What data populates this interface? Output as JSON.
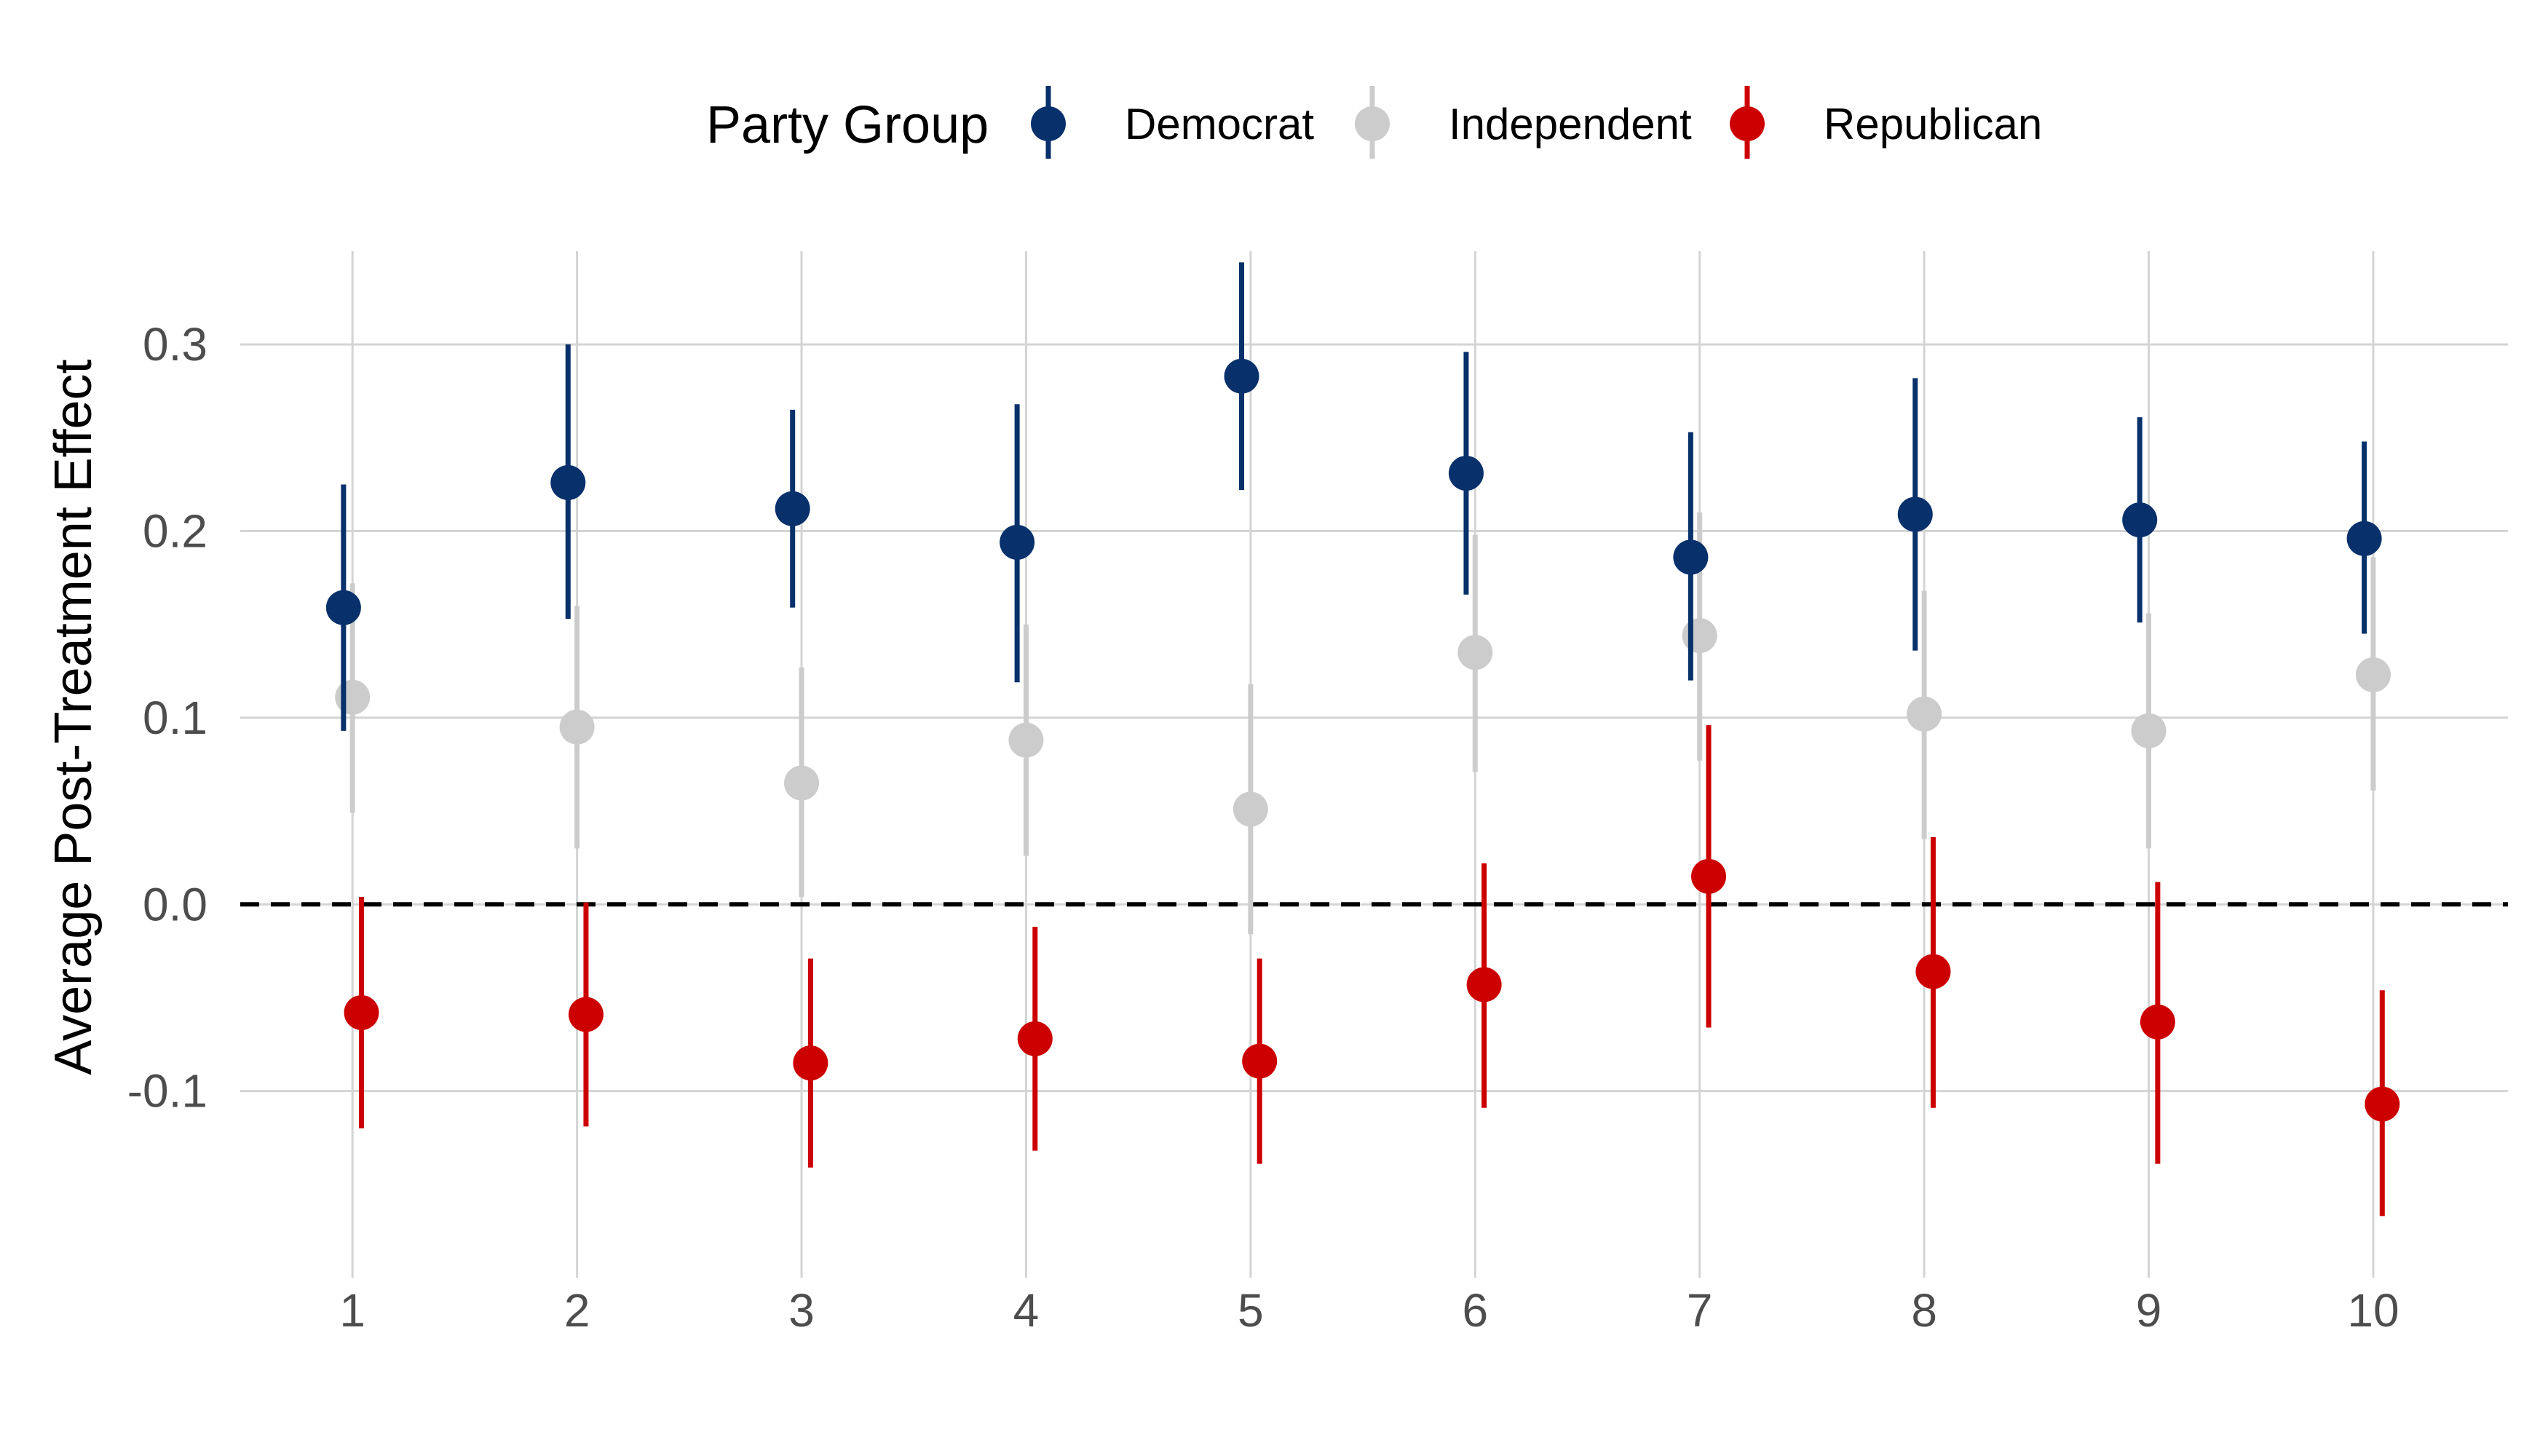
{
  "chart_data": {
    "type": "scatter",
    "title": "",
    "xlabel": "",
    "ylabel": "Average Post-Treatment Effect",
    "legend_title": "Party Group",
    "legend_position": "top",
    "grid": true,
    "x": [
      1,
      2,
      3,
      4,
      5,
      6,
      7,
      8,
      9,
      10
    ],
    "x_tick_labels": [
      "1",
      "2",
      "3",
      "4",
      "5",
      "6",
      "7",
      "8",
      "9",
      "10"
    ],
    "y_ticks": [
      -0.1,
      0.0,
      0.1,
      0.2,
      0.3
    ],
    "y_tick_labels": [
      "-0.1",
      "0.0",
      "0.1",
      "0.2",
      "0.3"
    ],
    "ylim": [
      -0.2,
      0.35
    ],
    "xlim": [
      0.5,
      10.6
    ],
    "reference_line": {
      "y": 0,
      "style": "dashed",
      "color": "#000000"
    },
    "series": [
      {
        "name": "Democrat",
        "color": "#08306b",
        "offset": -0.04,
        "values": [
          0.159,
          0.226,
          0.212,
          0.194,
          0.283,
          0.231,
          0.186,
          0.209,
          0.206,
          0.196
        ],
        "lower": [
          0.093,
          0.153,
          0.159,
          0.119,
          0.222,
          0.166,
          0.12,
          0.136,
          0.151,
          0.145
        ],
        "upper": [
          0.225,
          0.3,
          0.265,
          0.268,
          0.344,
          0.296,
          0.253,
          0.282,
          0.261,
          0.248
        ]
      },
      {
        "name": "Independent",
        "color": "#cccccc",
        "offset": 0.0,
        "values": [
          0.111,
          0.095,
          0.065,
          0.088,
          0.051,
          0.135,
          0.144,
          0.102,
          0.093,
          0.123
        ],
        "lower": [
          0.049,
          0.03,
          0.004,
          0.026,
          -0.016,
          0.071,
          0.077,
          0.035,
          0.03,
          0.061
        ],
        "upper": [
          0.172,
          0.16,
          0.127,
          0.15,
          0.118,
          0.198,
          0.21,
          0.168,
          0.156,
          0.186
        ]
      },
      {
        "name": "Republican",
        "color": "#cc0000",
        "offset": 0.04,
        "values": [
          -0.058,
          -0.059,
          -0.085,
          -0.072,
          -0.084,
          -0.043,
          0.015,
          -0.036,
          -0.063,
          -0.107
        ],
        "lower": [
          -0.12,
          -0.119,
          -0.141,
          -0.132,
          -0.139,
          -0.109,
          -0.066,
          -0.109,
          -0.139,
          -0.167
        ],
        "upper": [
          0.004,
          0.001,
          -0.029,
          -0.012,
          -0.029,
          0.022,
          0.096,
          0.036,
          0.012,
          -0.046
        ]
      }
    ]
  }
}
